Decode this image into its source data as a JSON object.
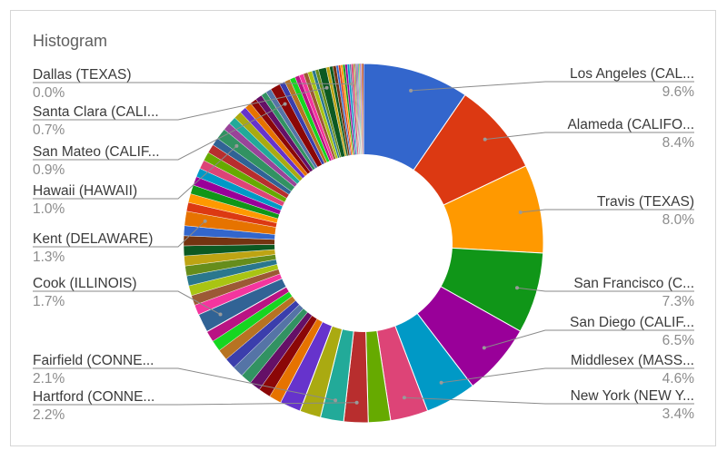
{
  "chart_data": {
    "type": "pie",
    "style": "donut",
    "title": "Histogram",
    "named_slices": [
      {
        "label": "Los Angeles (CAL...",
        "value": 9.6,
        "value_text": "9.6%",
        "color": "#3366cc",
        "side": "right"
      },
      {
        "label": "Alameda (CALIFO...",
        "value": 8.4,
        "value_text": "8.4%",
        "color": "#dc3912",
        "side": "right"
      },
      {
        "label": "Travis (TEXAS)",
        "value": 8.0,
        "value_text": "8.0%",
        "color": "#ff9900",
        "side": "right"
      },
      {
        "label": "San Francisco (C...",
        "value": 7.3,
        "value_text": "7.3%",
        "color": "#109618",
        "side": "right"
      },
      {
        "label": "San Diego (CALIF...",
        "value": 6.5,
        "value_text": "6.5%",
        "color": "#990099",
        "side": "right"
      },
      {
        "label": "Middlesex (MASS...",
        "value": 4.6,
        "value_text": "4.6%",
        "color": "#0099c6",
        "side": "right"
      },
      {
        "label": "New York (NEW Y...",
        "value": 3.4,
        "value_text": "3.4%",
        "color": "#dd4477",
        "side": "right"
      },
      {
        "label": "Hartford (CONNE...",
        "value": 2.2,
        "value_text": "2.2%",
        "color": "#b82e2e",
        "side": "left"
      },
      {
        "label": "Fairfield (CONNE...",
        "value": 2.1,
        "value_text": "2.1%",
        "color": "#22aa99",
        "side": "left"
      },
      {
        "label": "Cook (ILLINOIS)",
        "value": 1.7,
        "value_text": "1.7%",
        "color": "#316395",
        "side": "left"
      },
      {
        "label": "Kent (DELAWARE)",
        "value": 1.3,
        "value_text": "1.3%",
        "color": "#e67300",
        "side": "left"
      },
      {
        "label": "Hawaii (HAWAII)",
        "value": 1.0,
        "value_text": "1.0%",
        "color": "#329262",
        "side": "left"
      },
      {
        "label": "San Mateo (CALIF...",
        "value": 0.9,
        "value_text": "0.9%",
        "color": "#8b0707",
        "side": "left"
      },
      {
        "label": "Santa Clara (CALI...",
        "value": 0.7,
        "value_text": "0.7%",
        "color": "#0c5922",
        "side": "left"
      },
      {
        "label": "Dallas (TEXAS)",
        "value": 0.0,
        "value_text": "0.0%",
        "color": "#5574a6",
        "side": "left"
      }
    ],
    "unlabeled_slices": [
      1.1,
      1.1,
      1.0,
      1.0,
      1.0,
      1.0,
      1.0,
      1.0,
      1.0,
      0.9,
      0.9,
      0.9,
      0.9,
      0.9,
      0.9,
      0.9,
      0.9,
      0.9,
      0.8,
      0.8,
      0.8,
      0.8,
      0.8,
      0.8,
      0.8,
      0.8,
      0.7,
      0.7,
      0.7,
      0.7,
      0.6,
      0.6,
      0.6,
      0.6,
      0.5,
      0.5,
      0.5,
      0.5,
      0.5,
      0.4,
      0.4,
      0.4,
      0.4,
      0.3,
      0.3,
      0.3,
      0.3,
      0.3,
      0.2,
      0.2,
      0.2,
      0.2,
      0.2,
      0.2,
      0.2,
      0.1,
      0.1,
      0.1,
      0.1,
      0.1,
      0.1,
      0.1,
      0.1,
      0.1
    ],
    "palette": [
      "#3366cc",
      "#dc3912",
      "#ff9900",
      "#109618",
      "#990099",
      "#0099c6",
      "#dd4477",
      "#66aa00",
      "#b82e2e",
      "#316395",
      "#994499",
      "#22aa99",
      "#aaaa11",
      "#6633cc",
      "#e67300",
      "#8b0707",
      "#651067",
      "#329262",
      "#5574a6",
      "#3b3eac",
      "#b77322",
      "#16d620",
      "#b91383",
      "#f4359e",
      "#9c5935",
      "#a9c413",
      "#2a778d",
      "#668d1c",
      "#bea413",
      "#0c5922",
      "#743411"
    ],
    "legend": "labels",
    "donut_hole": true
  }
}
